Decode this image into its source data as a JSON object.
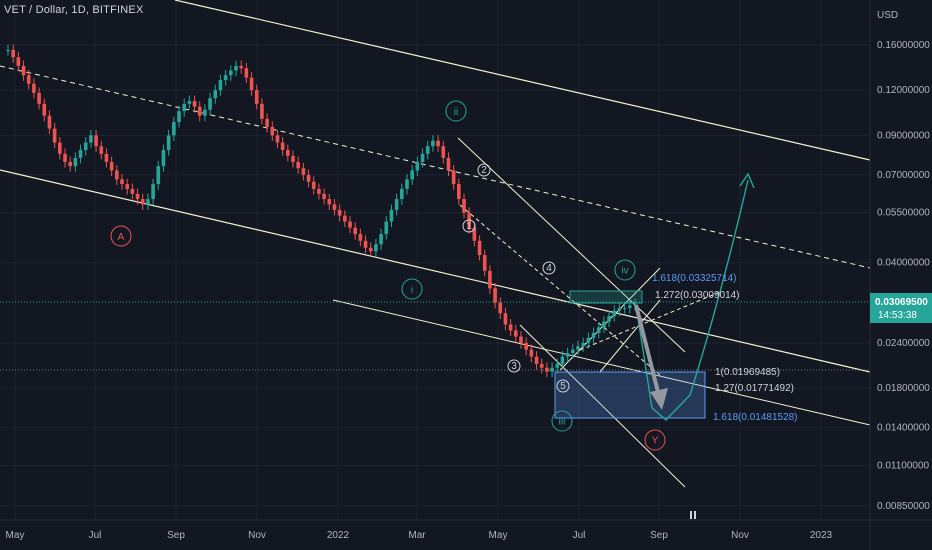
{
  "chart_data": {
    "type": "candlestick",
    "title": "VET / Dollar, 1D, BITFINEX",
    "currency": "USD",
    "scale": "log",
    "y_ticks": [
      "0.16000000",
      "0.12000000",
      "0.09000000",
      "0.07000000",
      "0.05500000",
      "0.04000000",
      "0.03069500",
      "0.02400000",
      "0.01800000",
      "0.01400000",
      "0.01100000",
      "0.00850000"
    ],
    "x_ticks": [
      "May",
      "Jul",
      "Sep",
      "Nov",
      "2022",
      "Mar",
      "May",
      "Jul",
      "Sep",
      "Nov",
      "2023"
    ],
    "last_price": "0.03069500",
    "countdown": "14:53:38",
    "colors": {
      "background": "#131722",
      "up": "#26a69a",
      "down": "#ef5350",
      "channel": "#f5f1d0",
      "wave": "#26a69a",
      "corrective": "#ef5350",
      "fib": "#5b9cf6"
    },
    "wave_labels": [
      {
        "text": "A",
        "color": "corrective"
      },
      {
        "text": "i",
        "color": "wave"
      },
      {
        "text": "ii",
        "color": "wave"
      },
      {
        "text": "iii",
        "color": "wave"
      },
      {
        "text": "iv",
        "color": "wave"
      },
      {
        "text": "Y",
        "color": "corrective"
      },
      {
        "text": "1",
        "color": "neutral"
      },
      {
        "text": "2",
        "color": "neutral"
      },
      {
        "text": "3",
        "color": "neutral"
      },
      {
        "text": "4",
        "color": "neutral"
      },
      {
        "text": "5",
        "color": "neutral"
      }
    ],
    "fib_labels": [
      {
        "text": "1.618(0.03325714)",
        "color": "fib"
      },
      {
        "text": "1.272(0.03009014)",
        "color": "neutral"
      },
      {
        "text": "1(0.01969485)",
        "color": "neutral"
      },
      {
        "text": "1.27(0.01771492)",
        "color": "neutral"
      },
      {
        "text": "1.618(0.01481528)",
        "color": "fib"
      }
    ],
    "closes": [
      0.155,
      0.148,
      0.14,
      0.132,
      0.125,
      0.118,
      0.11,
      0.102,
      0.094,
      0.086,
      0.08,
      0.076,
      0.074,
      0.078,
      0.082,
      0.086,
      0.09,
      0.084,
      0.08,
      0.076,
      0.072,
      0.068,
      0.066,
      0.064,
      0.062,
      0.06,
      0.058,
      0.06,
      0.066,
      0.074,
      0.082,
      0.09,
      0.098,
      0.105,
      0.11,
      0.112,
      0.108,
      0.102,
      0.106,
      0.114,
      0.12,
      0.128,
      0.132,
      0.136,
      0.14,
      0.138,
      0.13,
      0.12,
      0.11,
      0.1,
      0.095,
      0.09,
      0.086,
      0.082,
      0.079,
      0.076,
      0.073,
      0.07,
      0.067,
      0.064,
      0.062,
      0.06,
      0.058,
      0.056,
      0.054,
      0.052,
      0.05,
      0.048,
      0.046,
      0.044,
      0.043,
      0.045,
      0.048,
      0.052,
      0.056,
      0.06,
      0.064,
      0.068,
      0.072,
      0.076,
      0.08,
      0.084,
      0.087,
      0.084,
      0.078,
      0.072,
      0.066,
      0.06,
      0.055,
      0.05,
      0.046,
      0.042,
      0.038,
      0.034,
      0.031,
      0.029,
      0.027,
      0.026,
      0.025,
      0.024,
      0.023,
      0.022,
      0.021,
      0.0205,
      0.02,
      0.0205,
      0.021,
      0.022,
      0.0225,
      0.023,
      0.0235,
      0.024,
      0.0248,
      0.0256,
      0.0265,
      0.0275,
      0.0285,
      0.0295,
      0.03,
      0.03,
      0.0305,
      0.03069
    ]
  }
}
